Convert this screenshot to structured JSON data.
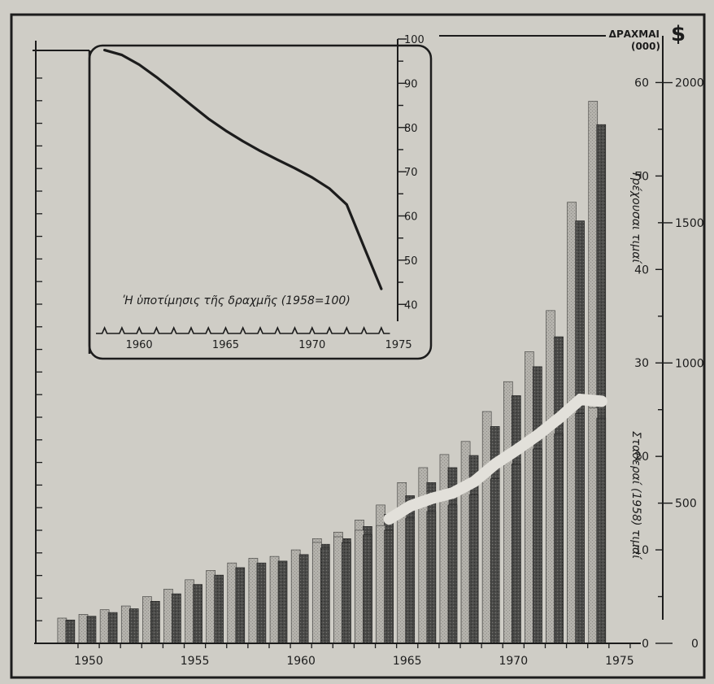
{
  "colors": {
    "paper": "#cfcdc6",
    "ink": "#1c1c1c",
    "bar_light": "#b3b1ab",
    "bar_dark": "#4a4a48"
  },
  "chart_data": [
    {
      "type": "bar",
      "title": "",
      "xlabel": "",
      "x": [
        1949,
        1950,
        1951,
        1952,
        1953,
        1954,
        1955,
        1956,
        1957,
        1958,
        1959,
        1960,
        1961,
        1962,
        1963,
        1964,
        1965,
        1966,
        1967,
        1968,
        1969,
        1970,
        1971,
        1972,
        1973,
        1974
      ],
      "xticks": [
        "1950",
        "1955",
        "1960",
        "1965",
        "1970",
        "1975"
      ],
      "xlim": [
        1948.2,
        1976
      ],
      "left_axis": {
        "unit_label": "ΔΡΑΧΜΑΙ",
        "unit_sub": "(000)",
        "ticks": [
          "0",
          "10",
          "20",
          "30",
          "40",
          "50",
          "60"
        ],
        "range": [
          0,
          65
        ]
      },
      "right_axis": {
        "unit_label": "$",
        "ticks": [
          "0",
          "500",
          "1000",
          "1500",
          "2000"
        ],
        "range": [
          0,
          2167
        ]
      },
      "series": [
        {
          "name": "Τρέχουσαι τιμαί",
          "light": [
            2.7,
            3.1,
            3.6,
            4.0,
            5.0,
            5.8,
            6.8,
            7.8,
            8.6,
            9.1,
            9.3,
            10.0,
            11.2,
            11.9,
            13.2,
            14.8,
            17.2,
            18.8,
            20.2,
            21.6,
            24.8,
            28.0,
            31.2,
            35.6,
            47.2,
            58.0
          ],
          "dark": [
            2.5,
            2.9,
            3.3,
            3.7,
            4.5,
            5.3,
            6.3,
            7.3,
            8.1,
            8.6,
            8.8,
            9.5,
            10.6,
            11.2,
            12.5,
            13.8,
            15.8,
            17.2,
            18.8,
            20.1,
            23.2,
            26.5,
            29.6,
            32.8,
            45.2,
            55.5
          ]
        },
        {
          "name": "Σταθεραί (1958) τιμαί",
          "light": [
            2.7,
            3.1,
            3.6,
            4.0,
            5.0,
            5.8,
            6.8,
            7.8,
            8.6,
            9.1,
            9.3,
            10.0,
            10.8,
            11.4,
            12.1,
            12.6,
            14.0,
            14.8,
            15.4,
            16.6,
            18.5,
            20.0,
            21.6,
            23.4,
            25.4,
            25.2
          ],
          "dark": [
            2.5,
            2.9,
            3.3,
            3.7,
            4.5,
            5.3,
            6.3,
            7.3,
            8.1,
            8.6,
            8.8,
            9.5,
            10.2,
            10.8,
            11.6,
            12.1,
            13.4,
            14.1,
            14.8,
            15.9,
            17.6,
            19.2,
            20.8,
            22.4,
            24.6,
            24.1
          ]
        }
      ]
    },
    {
      "type": "line",
      "title": "ʹΗ ὑποτίμησις τῆς δραχμῆς (1958=100)",
      "x": [
        1958,
        1959,
        1960,
        1961,
        1962,
        1963,
        1964,
        1965,
        1966,
        1967,
        1968,
        1969,
        1970,
        1971,
        1972,
        1973,
        1974
      ],
      "xticks": [
        "1960",
        "1965",
        "1970",
        "1975"
      ],
      "xlim": [
        1957.5,
        1975.7
      ],
      "yticks": [
        "40",
        "50",
        "60",
        "70",
        "80",
        "90",
        "100"
      ],
      "ylim": [
        36,
        100
      ],
      "series": [
        {
          "name": "",
          "values": [
            97.5,
            96.4,
            94.2,
            91.4,
            88.3,
            85.1,
            82.0,
            79.3,
            76.9,
            74.7,
            72.7,
            70.8,
            68.7,
            66.2,
            62.6,
            53.0,
            43.5
          ]
        }
      ]
    }
  ]
}
